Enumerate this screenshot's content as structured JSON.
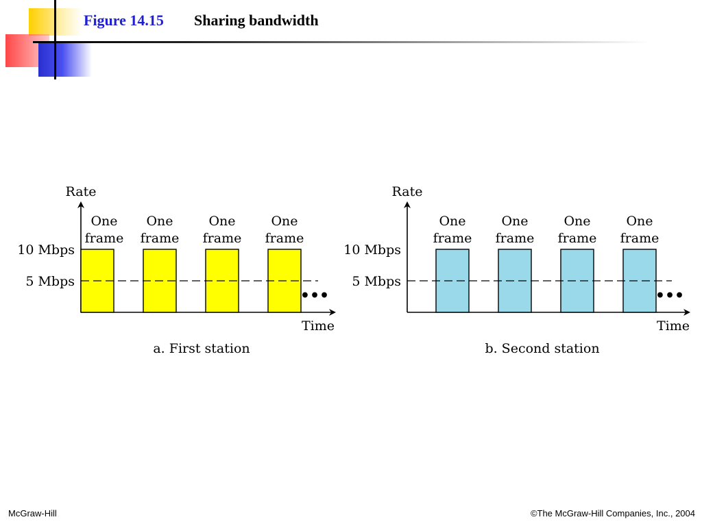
{
  "slide": {
    "figure_label": "Figure 14.15",
    "title": "Sharing bandwidth",
    "footer_left": "McGraw-Hill",
    "footer_right": "©The McGraw-Hill Companies, Inc., 2004"
  },
  "panels": [
    {
      "caption": "a. First station",
      "y_label": "Rate",
      "x_label": "Time",
      "rate_high": "10 Mbps",
      "rate_low": "5 Mbps",
      "frame_line1": "One",
      "frame_line2": "frame",
      "frame_count": 4,
      "frame_color": "#ffff00",
      "ellipsis": "•••"
    },
    {
      "caption": "b. Second station",
      "y_label": "Rate",
      "x_label": "Time",
      "rate_high": "10 Mbps",
      "rate_low": "5 Mbps",
      "frame_line1": "One",
      "frame_line2": "frame",
      "frame_count": 4,
      "frame_color": "#99d9ea",
      "ellipsis": "•••"
    }
  ]
}
